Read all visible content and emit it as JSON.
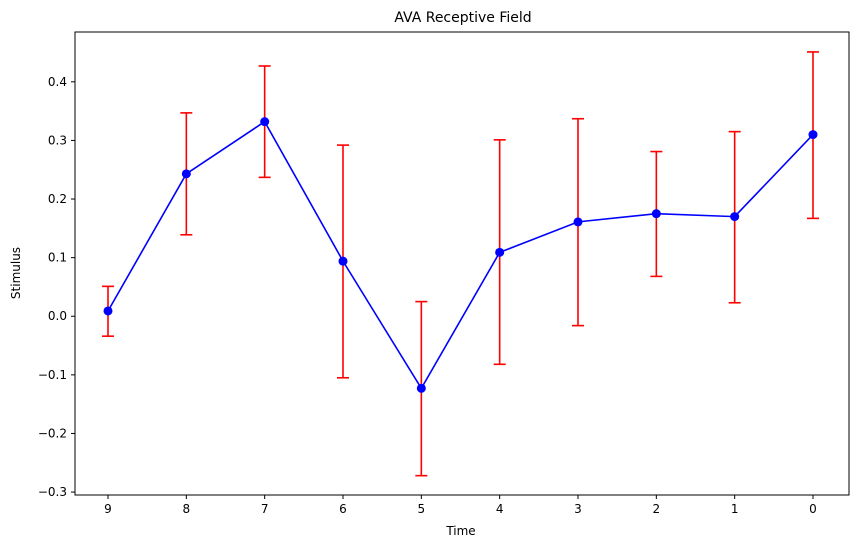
{
  "chart_data": {
    "type": "line",
    "title": "AVA Receptive Field",
    "xlabel": "Time",
    "ylabel": "Stimulus",
    "categories": [
      "9",
      "8",
      "7",
      "6",
      "5",
      "4",
      "3",
      "2",
      "1",
      "0"
    ],
    "series": [
      {
        "values": [
          0.009,
          0.243,
          0.332,
          0.094,
          -0.123,
          0.109,
          0.161,
          0.175,
          0.17,
          0.31
        ],
        "error_low": [
          -0.034,
          0.139,
          0.237,
          -0.105,
          -0.272,
          -0.082,
          -0.016,
          0.068,
          0.023,
          0.167
        ],
        "error_high": [
          0.051,
          0.347,
          0.427,
          0.292,
          0.025,
          0.301,
          0.337,
          0.281,
          0.315,
          0.451
        ]
      }
    ],
    "ylim": [
      -0.305,
      0.485
    ],
    "yticks": [
      "0.4",
      "0.3",
      "0.2",
      "0.1",
      "0.0",
      "−0.1",
      "−0.2",
      "−0.3"
    ],
    "ytick_values": [
      0.4,
      0.3,
      0.2,
      0.1,
      0.0,
      -0.1,
      -0.2,
      -0.3
    ],
    "grid": false,
    "colors": {
      "line": "#0000ff",
      "marker": "#0000ff",
      "error_bar": "#ff0000"
    }
  }
}
